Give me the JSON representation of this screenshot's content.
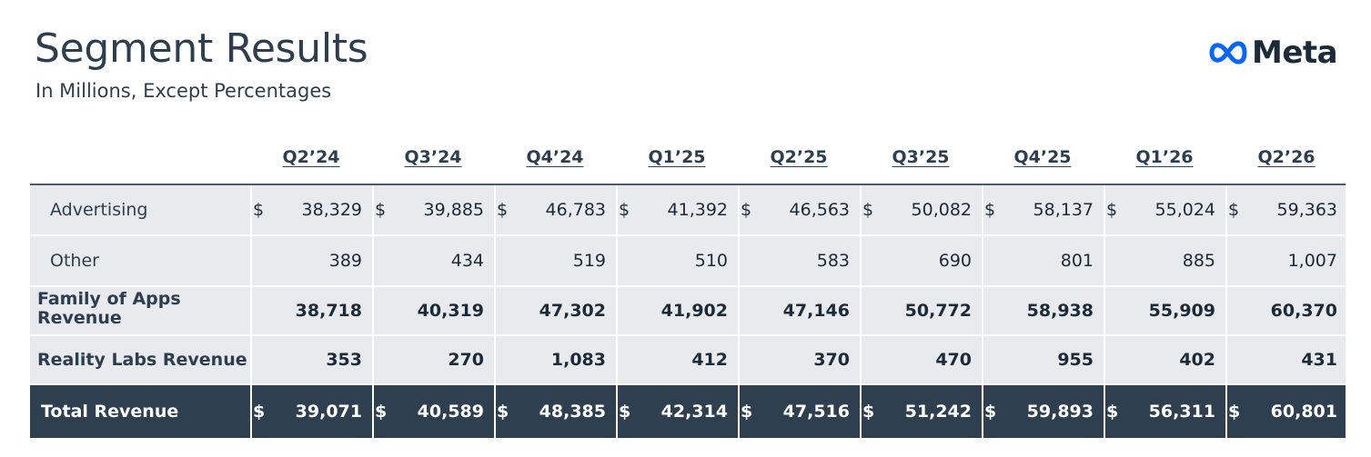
{
  "title": "Segment Results",
  "subtitle": "In Millions, Except Percentages",
  "brand": {
    "name": "Meta",
    "logo_icon": "meta-infinity-icon",
    "logo_color": "#0866ff"
  },
  "colors": {
    "row_bg": "#e9eaed",
    "total_bg": "#2e3f4f",
    "text": "#1c2b39"
  },
  "currency_symbol": "$",
  "quarters": [
    "Q2’24",
    "Q3’24",
    "Q4’24",
    "Q1’25",
    "Q2’25",
    "Q3’25",
    "Q4’25",
    "Q1’26",
    "Q2’26"
  ],
  "rows": [
    {
      "label": "Advertising",
      "bold": false,
      "dollar": true,
      "values": [
        "38,329",
        "39,885",
        "46,783",
        "41,392",
        "46,563",
        "50,082",
        "58,137",
        "55,024",
        "59,363"
      ]
    },
    {
      "label": "Other",
      "bold": false,
      "dollar": false,
      "values": [
        "389",
        "434",
        "519",
        "510",
        "583",
        "690",
        "801",
        "885",
        "1,007"
      ]
    },
    {
      "label_lines": [
        "Family of Apps",
        "Revenue"
      ],
      "bold": true,
      "dollar": false,
      "values": [
        "38,718",
        "40,319",
        "47,302",
        "41,902",
        "47,146",
        "50,772",
        "58,938",
        "55,909",
        "60,370"
      ]
    },
    {
      "label": "Reality Labs Revenue",
      "bold": true,
      "dollar": false,
      "values": [
        "353",
        "270",
        "1,083",
        "412",
        "370",
        "470",
        "955",
        "402",
        "431"
      ]
    },
    {
      "label": "Total Revenue",
      "bold": true,
      "dollar": true,
      "total": true,
      "values": [
        "39,071",
        "40,589",
        "48,385",
        "42,314",
        "47,516",
        "51,242",
        "59,893",
        "56,311",
        "60,801"
      ]
    }
  ]
}
